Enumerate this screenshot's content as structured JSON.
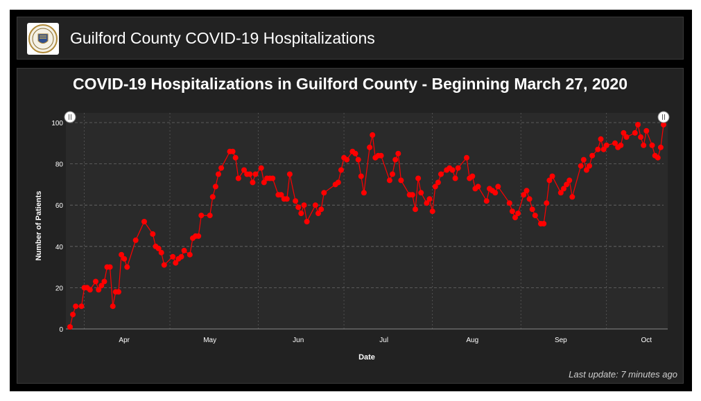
{
  "header": {
    "title": "Guilford County COVID-19 Hospitalizations",
    "logo_icon": "county-seal-icon"
  },
  "footer": {
    "last_update": "Last update: 7 minutes ago"
  },
  "colors": {
    "series": "#ff0000",
    "background": "#222222"
  },
  "chart_data": {
    "type": "line",
    "title": "COVID-19 Hospitalizations in Guilford County - Beginning March 27, 2020",
    "xlabel": "Date",
    "ylabel": "Number of Patients",
    "ylim": [
      0,
      100
    ],
    "yticks": [
      0,
      20,
      40,
      60,
      80,
      100
    ],
    "xlim": [
      "2020-03-27",
      "2020-10-21"
    ],
    "xticks": [
      {
        "label": "Apr",
        "date": "2020-04-15"
      },
      {
        "label": "May",
        "date": "2020-05-15"
      },
      {
        "label": "Jun",
        "date": "2020-06-15"
      },
      {
        "label": "Jul",
        "date": "2020-07-15"
      },
      {
        "label": "Aug",
        "date": "2020-08-15"
      },
      {
        "label": "Sep",
        "date": "2020-09-15"
      },
      {
        "label": "Oct",
        "date": "2020-10-15"
      }
    ],
    "grid": true,
    "series": [
      {
        "points": [
          [
            "2020-03-27",
            1
          ],
          [
            "2020-03-28",
            7
          ],
          [
            "2020-03-29",
            11
          ],
          [
            "2020-03-31",
            11
          ],
          [
            "2020-04-01",
            20
          ],
          [
            "2020-04-02",
            20
          ],
          [
            "2020-04-03",
            19
          ],
          [
            "2020-04-05",
            23
          ],
          [
            "2020-04-06",
            19
          ],
          [
            "2020-04-07",
            21
          ],
          [
            "2020-04-08",
            23
          ],
          [
            "2020-04-09",
            30
          ],
          [
            "2020-04-10",
            30
          ],
          [
            "2020-04-11",
            11
          ],
          [
            "2020-04-12",
            18
          ],
          [
            "2020-04-13",
            18
          ],
          [
            "2020-04-14",
            36
          ],
          [
            "2020-04-15",
            34
          ],
          [
            "2020-04-16",
            30
          ],
          [
            "2020-04-19",
            43
          ],
          [
            "2020-04-22",
            52
          ],
          [
            "2020-04-25",
            46
          ],
          [
            "2020-04-26",
            40
          ],
          [
            "2020-04-27",
            39
          ],
          [
            "2020-04-28",
            37
          ],
          [
            "2020-04-29",
            31
          ],
          [
            "2020-05-02",
            35
          ],
          [
            "2020-05-03",
            32
          ],
          [
            "2020-05-04",
            34
          ],
          [
            "2020-05-05",
            35
          ],
          [
            "2020-05-06",
            38
          ],
          [
            "2020-05-08",
            36
          ],
          [
            "2020-05-09",
            44
          ],
          [
            "2020-05-10",
            45
          ],
          [
            "2020-05-11",
            45
          ],
          [
            "2020-05-12",
            55
          ],
          [
            "2020-05-15",
            55
          ],
          [
            "2020-05-16",
            64
          ],
          [
            "2020-05-17",
            69
          ],
          [
            "2020-05-18",
            75
          ],
          [
            "2020-05-19",
            78
          ],
          [
            "2020-05-22",
            86
          ],
          [
            "2020-05-23",
            86
          ],
          [
            "2020-05-24",
            83
          ],
          [
            "2020-05-25",
            73
          ],
          [
            "2020-05-27",
            77
          ],
          [
            "2020-05-28",
            75
          ],
          [
            "2020-05-29",
            75
          ],
          [
            "2020-05-30",
            71
          ],
          [
            "2020-05-31",
            75
          ],
          [
            "2020-06-02",
            78
          ],
          [
            "2020-06-03",
            71
          ],
          [
            "2020-06-04",
            73
          ],
          [
            "2020-06-05",
            73
          ],
          [
            "2020-06-06",
            73
          ],
          [
            "2020-06-08",
            65
          ],
          [
            "2020-06-09",
            65
          ],
          [
            "2020-06-10",
            63
          ],
          [
            "2020-06-11",
            63
          ],
          [
            "2020-06-12",
            75
          ],
          [
            "2020-06-14",
            62
          ],
          [
            "2020-06-15",
            59
          ],
          [
            "2020-06-16",
            56
          ],
          [
            "2020-06-17",
            60
          ],
          [
            "2020-06-18",
            52
          ],
          [
            "2020-06-21",
            60
          ],
          [
            "2020-06-22",
            56
          ],
          [
            "2020-06-23",
            58
          ],
          [
            "2020-06-24",
            66
          ],
          [
            "2020-06-28",
            70
          ],
          [
            "2020-06-29",
            71
          ],
          [
            "2020-06-30",
            77
          ],
          [
            "2020-07-01",
            83
          ],
          [
            "2020-07-02",
            82
          ],
          [
            "2020-07-04",
            86
          ],
          [
            "2020-07-05",
            85
          ],
          [
            "2020-07-06",
            82
          ],
          [
            "2020-07-07",
            74
          ],
          [
            "2020-07-08",
            66
          ],
          [
            "2020-07-10",
            88
          ],
          [
            "2020-07-11",
            94
          ],
          [
            "2020-07-12",
            83
          ],
          [
            "2020-07-13",
            84
          ],
          [
            "2020-07-14",
            84
          ],
          [
            "2020-07-17",
            72
          ],
          [
            "2020-07-18",
            75
          ],
          [
            "2020-07-19",
            82
          ],
          [
            "2020-07-20",
            85
          ],
          [
            "2020-07-21",
            72
          ],
          [
            "2020-07-24",
            65
          ],
          [
            "2020-07-25",
            65
          ],
          [
            "2020-07-26",
            58
          ],
          [
            "2020-07-27",
            73
          ],
          [
            "2020-07-28",
            66
          ],
          [
            "2020-07-30",
            61
          ],
          [
            "2020-07-31",
            63
          ],
          [
            "2020-08-01",
            57
          ],
          [
            "2020-08-02",
            69
          ],
          [
            "2020-08-03",
            71
          ],
          [
            "2020-08-04",
            75
          ],
          [
            "2020-08-06",
            77
          ],
          [
            "2020-08-07",
            78
          ],
          [
            "2020-08-08",
            77
          ],
          [
            "2020-08-09",
            73
          ],
          [
            "2020-08-10",
            78
          ],
          [
            "2020-08-13",
            83
          ],
          [
            "2020-08-14",
            73
          ],
          [
            "2020-08-15",
            74
          ],
          [
            "2020-08-16",
            68
          ],
          [
            "2020-08-17",
            69
          ],
          [
            "2020-08-20",
            62
          ],
          [
            "2020-08-21",
            68
          ],
          [
            "2020-08-22",
            67
          ],
          [
            "2020-08-23",
            66
          ],
          [
            "2020-08-24",
            69
          ],
          [
            "2020-08-28",
            61
          ],
          [
            "2020-08-29",
            57
          ],
          [
            "2020-08-30",
            54
          ],
          [
            "2020-08-31",
            56
          ],
          [
            "2020-09-02",
            65
          ],
          [
            "2020-09-03",
            67
          ],
          [
            "2020-09-04",
            63
          ],
          [
            "2020-09-05",
            58
          ],
          [
            "2020-09-06",
            55
          ],
          [
            "2020-09-08",
            51
          ],
          [
            "2020-09-09",
            51
          ],
          [
            "2020-09-10",
            61
          ],
          [
            "2020-09-11",
            72
          ],
          [
            "2020-09-12",
            74
          ],
          [
            "2020-09-15",
            66
          ],
          [
            "2020-09-16",
            68
          ],
          [
            "2020-09-17",
            70
          ],
          [
            "2020-09-18",
            72
          ],
          [
            "2020-09-19",
            64
          ],
          [
            "2020-09-22",
            79
          ],
          [
            "2020-09-23",
            82
          ],
          [
            "2020-09-24",
            77
          ],
          [
            "2020-09-25",
            79
          ],
          [
            "2020-09-26",
            84
          ],
          [
            "2020-09-28",
            87
          ],
          [
            "2020-09-29",
            92
          ],
          [
            "2020-09-30",
            87
          ],
          [
            "2020-10-01",
            89
          ],
          [
            "2020-10-04",
            90
          ],
          [
            "2020-10-05",
            88
          ],
          [
            "2020-10-06",
            89
          ],
          [
            "2020-10-07",
            95
          ],
          [
            "2020-10-08",
            93
          ],
          [
            "2020-10-11",
            95
          ],
          [
            "2020-10-12",
            99
          ],
          [
            "2020-10-13",
            93
          ],
          [
            "2020-10-14",
            89
          ],
          [
            "2020-10-15",
            96
          ],
          [
            "2020-10-17",
            89
          ],
          [
            "2020-10-18",
            84
          ],
          [
            "2020-10-19",
            83
          ],
          [
            "2020-10-20",
            88
          ],
          [
            "2020-10-21",
            99
          ]
        ]
      }
    ]
  }
}
